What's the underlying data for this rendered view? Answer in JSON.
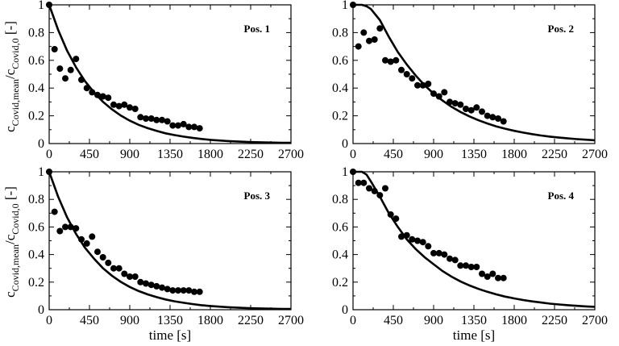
{
  "chart_data": [
    {
      "type": "scatter",
      "panel_label": "Pos. 1",
      "xlim": [
        0,
        2700
      ],
      "ylim": [
        0,
        1
      ],
      "xticks": [
        "0",
        "450",
        "900",
        "1350",
        "1800",
        "2250",
        "2700"
      ],
      "yticks": [
        "0",
        "0.2",
        "0.4",
        "0.6",
        "0.8",
        "1"
      ],
      "series": [
        {
          "style": "markers",
          "x": [
            0,
            60,
            120,
            180,
            240,
            300,
            360,
            420,
            480,
            540,
            600,
            660,
            720,
            780,
            840,
            900,
            960,
            1020,
            1080,
            1140,
            1200,
            1260,
            1320,
            1380,
            1440,
            1500,
            1560,
            1620,
            1680
          ],
          "y": [
            1.0,
            0.68,
            0.54,
            0.47,
            0.53,
            0.61,
            0.46,
            0.4,
            0.37,
            0.35,
            0.34,
            0.33,
            0.28,
            0.27,
            0.28,
            0.26,
            0.25,
            0.19,
            0.18,
            0.18,
            0.17,
            0.17,
            0.16,
            0.13,
            0.13,
            0.14,
            0.12,
            0.12,
            0.11
          ]
        },
        {
          "style": "line",
          "x": [
            0,
            100,
            200,
            300,
            400,
            500,
            600,
            700,
            800,
            900,
            1000,
            1100,
            1200,
            1300,
            1400,
            1500,
            1600,
            1700,
            1800,
            1900,
            2000,
            2100,
            2200,
            2300,
            2400,
            2500,
            2600,
            2700
          ],
          "y": [
            1.0,
            0.82,
            0.67,
            0.55,
            0.45,
            0.37,
            0.301,
            0.247,
            0.202,
            0.165,
            0.135,
            0.111,
            0.091,
            0.074,
            0.061,
            0.05,
            0.041,
            0.033,
            0.027,
            0.022,
            0.018,
            0.015,
            0.012,
            0.01,
            0.008,
            0.007,
            0.006,
            0.005
          ]
        }
      ]
    },
    {
      "type": "scatter",
      "panel_label": "Pos. 2",
      "xlim": [
        0,
        2700
      ],
      "ylim": [
        0,
        1
      ],
      "xticks": [
        "0",
        "450",
        "900",
        "1350",
        "1800",
        "2250",
        "2700"
      ],
      "yticks": [
        "0",
        "0.2",
        "0.4",
        "0.6",
        "0.8",
        "1"
      ],
      "series": [
        {
          "style": "markers",
          "x": [
            0,
            60,
            120,
            180,
            240,
            300,
            360,
            420,
            480,
            540,
            600,
            660,
            720,
            780,
            840,
            900,
            960,
            1020,
            1080,
            1140,
            1200,
            1260,
            1320,
            1380,
            1440,
            1500,
            1560,
            1620,
            1680
          ],
          "y": [
            1.0,
            0.7,
            0.8,
            0.74,
            0.75,
            0.83,
            0.6,
            0.59,
            0.6,
            0.53,
            0.5,
            0.47,
            0.42,
            0.42,
            0.43,
            0.36,
            0.34,
            0.37,
            0.3,
            0.29,
            0.28,
            0.25,
            0.24,
            0.26,
            0.23,
            0.2,
            0.19,
            0.18,
            0.16
          ]
        },
        {
          "style": "line",
          "x": [
            0,
            50,
            100,
            150,
            200,
            300,
            400,
            500,
            600,
            700,
            800,
            900,
            1000,
            1100,
            1200,
            1300,
            1400,
            1500,
            1600,
            1700,
            1800,
            1900,
            2000,
            2100,
            2200,
            2300,
            2400,
            2500,
            2600,
            2700
          ],
          "y": [
            1.0,
            1.0,
            1.0,
            0.99,
            0.97,
            0.89,
            0.77,
            0.66,
            0.57,
            0.49,
            0.42,
            0.36,
            0.31,
            0.265,
            0.228,
            0.196,
            0.168,
            0.145,
            0.124,
            0.107,
            0.092,
            0.079,
            0.068,
            0.058,
            0.05,
            0.043,
            0.037,
            0.032,
            0.028,
            0.024
          ]
        }
      ]
    },
    {
      "type": "scatter",
      "panel_label": "Pos. 3",
      "xlabel": "time [s]",
      "xlim": [
        0,
        2700
      ],
      "ylim": [
        0,
        1
      ],
      "xticks": [
        "0",
        "450",
        "900",
        "1350",
        "1800",
        "2250",
        "2700"
      ],
      "yticks": [
        "0",
        "0.2",
        "0.4",
        "0.6",
        "0.8",
        "1"
      ],
      "series": [
        {
          "style": "markers",
          "x": [
            0,
            60,
            120,
            180,
            240,
            300,
            360,
            420,
            480,
            540,
            600,
            660,
            720,
            780,
            840,
            900,
            960,
            1020,
            1080,
            1140,
            1200,
            1260,
            1320,
            1380,
            1440,
            1500,
            1560,
            1620,
            1680
          ],
          "y": [
            1.0,
            0.71,
            0.57,
            0.6,
            0.6,
            0.59,
            0.51,
            0.48,
            0.53,
            0.42,
            0.38,
            0.34,
            0.3,
            0.3,
            0.26,
            0.24,
            0.24,
            0.2,
            0.19,
            0.18,
            0.17,
            0.16,
            0.15,
            0.14,
            0.14,
            0.14,
            0.14,
            0.13,
            0.13
          ]
        },
        {
          "style": "line",
          "x": [
            0,
            100,
            200,
            300,
            400,
            500,
            600,
            700,
            800,
            900,
            1000,
            1100,
            1200,
            1300,
            1400,
            1500,
            1600,
            1700,
            1800,
            1900,
            2000,
            2100,
            2200,
            2300,
            2400,
            2500,
            2600,
            2700
          ],
          "y": [
            1.0,
            0.82,
            0.67,
            0.55,
            0.45,
            0.37,
            0.301,
            0.247,
            0.202,
            0.165,
            0.135,
            0.111,
            0.091,
            0.074,
            0.061,
            0.05,
            0.041,
            0.033,
            0.027,
            0.022,
            0.018,
            0.015,
            0.012,
            0.01,
            0.008,
            0.007,
            0.006,
            0.005
          ]
        }
      ]
    },
    {
      "type": "scatter",
      "panel_label": "Pos. 4",
      "xlabel": "time [s]",
      "xlim": [
        0,
        2700
      ],
      "ylim": [
        0,
        1
      ],
      "xticks": [
        "0",
        "450",
        "900",
        "1350",
        "1800",
        "2250",
        "2700"
      ],
      "yticks": [
        "0",
        "0.2",
        "0.4",
        "0.6",
        "0.8",
        "1"
      ],
      "series": [
        {
          "style": "markers",
          "x": [
            0,
            60,
            120,
            180,
            240,
            300,
            360,
            420,
            480,
            540,
            600,
            660,
            720,
            780,
            840,
            900,
            960,
            1020,
            1080,
            1140,
            1200,
            1260,
            1320,
            1380,
            1440,
            1500,
            1560,
            1620,
            1680
          ],
          "y": [
            1.0,
            0.92,
            0.92,
            0.88,
            0.86,
            0.83,
            0.88,
            0.69,
            0.66,
            0.53,
            0.54,
            0.51,
            0.5,
            0.49,
            0.46,
            0.41,
            0.41,
            0.4,
            0.37,
            0.36,
            0.32,
            0.32,
            0.31,
            0.31,
            0.26,
            0.24,
            0.26,
            0.23,
            0.23
          ]
        },
        {
          "style": "line",
          "x": [
            0,
            50,
            100,
            150,
            200,
            300,
            400,
            500,
            600,
            700,
            800,
            900,
            1000,
            1100,
            1200,
            1300,
            1400,
            1500,
            1600,
            1700,
            1800,
            1900,
            2000,
            2100,
            2200,
            2300,
            2400,
            2500,
            2600,
            2700
          ],
          "y": [
            1.0,
            1.0,
            1.0,
            0.98,
            0.93,
            0.82,
            0.7,
            0.6,
            0.51,
            0.44,
            0.38,
            0.33,
            0.28,
            0.24,
            0.205,
            0.176,
            0.151,
            0.13,
            0.111,
            0.095,
            0.082,
            0.07,
            0.06,
            0.052,
            0.044,
            0.038,
            0.033,
            0.028,
            0.024,
            0.021
          ]
        }
      ]
    }
  ],
  "ylabel_left": {
    "main": "c",
    "sub1": "Covid,mean",
    "mid": "/c",
    "sub2": "Covid,0",
    "unit": " [-]"
  }
}
